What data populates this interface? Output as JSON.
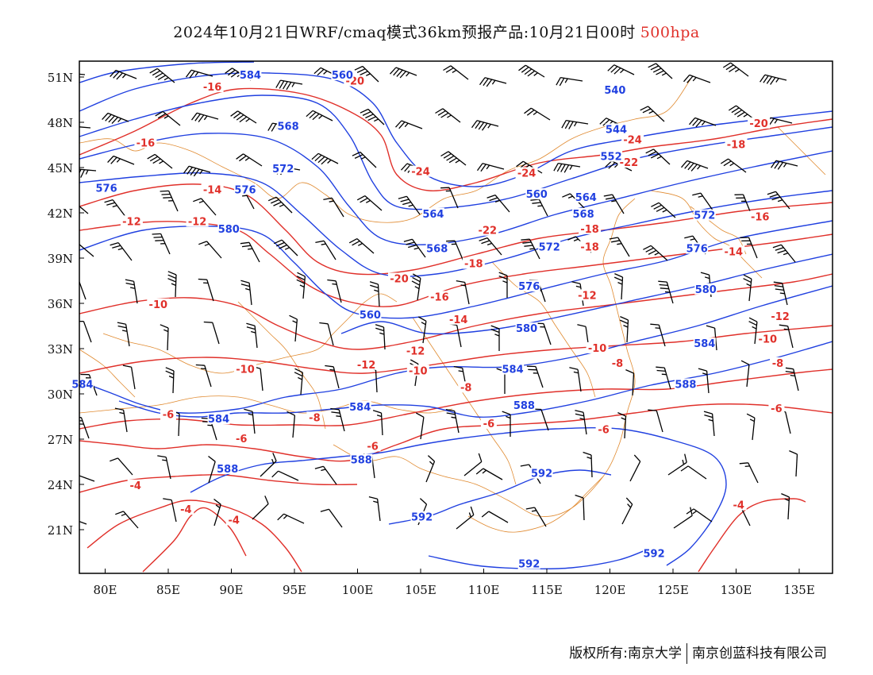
{
  "title": "2024年10月21日WRF/cmaq模式36km预报产品:10月21日00时",
  "level": "500hpa",
  "lat_ticks": [
    "51N",
    "48N",
    "45N",
    "42N",
    "39N",
    "36N",
    "33N",
    "30N",
    "27N",
    "24N",
    "21N"
  ],
  "lon_ticks": [
    "80E",
    "85E",
    "90E",
    "95E",
    "100E",
    "105E",
    "110E",
    "115E",
    "120E",
    "125E",
    "130E",
    "135E"
  ],
  "colors": {
    "height": "#2040e0",
    "temp": "#e0302a",
    "border": "#e08a30",
    "frame": "#000000"
  },
  "height_labels": [
    {
      "text": "584",
      "lon": 91.5,
      "lat": 51.0
    },
    {
      "text": "560",
      "lon": 98.8,
      "lat": 51.0
    },
    {
      "text": "568",
      "lon": 94.5,
      "lat": 47.6
    },
    {
      "text": "572",
      "lon": 94.1,
      "lat": 44.8
    },
    {
      "text": "576",
      "lon": 80.1,
      "lat": 43.5
    },
    {
      "text": "576",
      "lon": 91.1,
      "lat": 43.4
    },
    {
      "text": "580",
      "lon": 89.8,
      "lat": 40.8
    },
    {
      "text": "564",
      "lon": 106.0,
      "lat": 41.8
    },
    {
      "text": "568",
      "lon": 106.3,
      "lat": 39.5
    },
    {
      "text": "560",
      "lon": 114.2,
      "lat": 43.1
    },
    {
      "text": "540",
      "lon": 120.4,
      "lat": 50.0
    },
    {
      "text": "544",
      "lon": 120.5,
      "lat": 47.4
    },
    {
      "text": "552",
      "lon": 120.1,
      "lat": 45.6
    },
    {
      "text": "564",
      "lon": 118.1,
      "lat": 42.9
    },
    {
      "text": "568",
      "lon": 117.9,
      "lat": 41.8
    },
    {
      "text": "572",
      "lon": 115.2,
      "lat": 39.6
    },
    {
      "text": "572",
      "lon": 127.5,
      "lat": 41.7
    },
    {
      "text": "576",
      "lon": 126.9,
      "lat": 39.5
    },
    {
      "text": "576",
      "lon": 113.6,
      "lat": 37.0
    },
    {
      "text": "580",
      "lon": 127.6,
      "lat": 36.8
    },
    {
      "text": "560",
      "lon": 101.0,
      "lat": 35.1
    },
    {
      "text": "580",
      "lon": 113.4,
      "lat": 34.2
    },
    {
      "text": "584",
      "lon": 127.5,
      "lat": 33.2
    },
    {
      "text": "584",
      "lon": 112.3,
      "lat": 31.5
    },
    {
      "text": "584",
      "lon": 78.2,
      "lat": 30.5
    },
    {
      "text": "584",
      "lon": 89.0,
      "lat": 28.2
    },
    {
      "text": "584",
      "lon": 100.2,
      "lat": 29.0
    },
    {
      "text": "588",
      "lon": 126.0,
      "lat": 30.5
    },
    {
      "text": "588",
      "lon": 113.2,
      "lat": 29.1
    },
    {
      "text": "588",
      "lon": 89.7,
      "lat": 24.9
    },
    {
      "text": "588",
      "lon": 100.3,
      "lat": 25.5
    },
    {
      "text": "592",
      "lon": 114.6,
      "lat": 24.6
    },
    {
      "text": "592",
      "lon": 105.1,
      "lat": 21.7
    },
    {
      "text": "592",
      "lon": 113.6,
      "lat": 18.6
    },
    {
      "text": "592",
      "lon": 123.5,
      "lat": 19.3
    }
  ],
  "temp_labels": [
    {
      "text": "-20",
      "lon": 99.8,
      "lat": 50.6
    },
    {
      "text": "-16",
      "lon": 88.5,
      "lat": 50.2
    },
    {
      "text": "-16",
      "lon": 83.2,
      "lat": 46.5
    },
    {
      "text": "-14",
      "lon": 88.5,
      "lat": 43.4
    },
    {
      "text": "-12",
      "lon": 82.1,
      "lat": 41.3
    },
    {
      "text": "-12",
      "lon": 87.3,
      "lat": 41.3
    },
    {
      "text": "-24",
      "lon": 105.0,
      "lat": 44.6
    },
    {
      "text": "-24",
      "lon": 113.4,
      "lat": 44.5
    },
    {
      "text": "-24",
      "lon": 121.8,
      "lat": 46.7
    },
    {
      "text": "-22",
      "lon": 121.5,
      "lat": 45.2
    },
    {
      "text": "-20",
      "lon": 131.8,
      "lat": 47.8
    },
    {
      "text": "-18",
      "lon": 130.0,
      "lat": 46.4
    },
    {
      "text": "-18",
      "lon": 118.4,
      "lat": 40.8
    },
    {
      "text": "-18",
      "lon": 118.4,
      "lat": 39.6
    },
    {
      "text": "-22",
      "lon": 110.3,
      "lat": 40.7
    },
    {
      "text": "-18",
      "lon": 109.2,
      "lat": 38.5
    },
    {
      "text": "-20",
      "lon": 103.3,
      "lat": 37.5
    },
    {
      "text": "-16",
      "lon": 131.9,
      "lat": 41.6
    },
    {
      "text": "-14",
      "lon": 129.8,
      "lat": 39.3
    },
    {
      "text": "-16",
      "lon": 106.5,
      "lat": 36.3
    },
    {
      "text": "-14",
      "lon": 108.0,
      "lat": 34.8
    },
    {
      "text": "-12",
      "lon": 118.2,
      "lat": 36.4
    },
    {
      "text": "-10",
      "lon": 84.2,
      "lat": 35.8
    },
    {
      "text": "-12",
      "lon": 104.6,
      "lat": 32.7
    },
    {
      "text": "-12",
      "lon": 100.7,
      "lat": 31.8
    },
    {
      "text": "-10",
      "lon": 104.8,
      "lat": 31.4
    },
    {
      "text": "-10",
      "lon": 91.1,
      "lat": 31.5
    },
    {
      "text": "-10",
      "lon": 119.0,
      "lat": 32.9
    },
    {
      "text": "-12",
      "lon": 133.5,
      "lat": 35.0
    },
    {
      "text": "-10",
      "lon": 132.5,
      "lat": 33.5
    },
    {
      "text": "-8",
      "lon": 120.6,
      "lat": 31.9
    },
    {
      "text": "-8",
      "lon": 133.3,
      "lat": 31.9
    },
    {
      "text": "-8",
      "lon": 108.6,
      "lat": 30.3
    },
    {
      "text": "-6",
      "lon": 85.0,
      "lat": 28.5
    },
    {
      "text": "-8",
      "lon": 96.6,
      "lat": 28.3
    },
    {
      "text": "-6",
      "lon": 110.4,
      "lat": 27.9
    },
    {
      "text": "-6",
      "lon": 119.5,
      "lat": 27.5
    },
    {
      "text": "-6",
      "lon": 133.2,
      "lat": 28.9
    },
    {
      "text": "-6",
      "lon": 90.8,
      "lat": 26.9
    },
    {
      "text": "-6",
      "lon": 101.2,
      "lat": 26.4
    },
    {
      "text": "-4",
      "lon": 82.4,
      "lat": 23.8
    },
    {
      "text": "-4",
      "lon": 86.4,
      "lat": 22.2
    },
    {
      "text": "-4",
      "lon": 90.2,
      "lat": 21.5
    },
    {
      "text": "-4",
      "lon": 130.2,
      "lat": 22.5
    }
  ],
  "footer": {
    "copyright": "版权所有:南京大学",
    "company": "南京创蓝科技有限公司"
  }
}
